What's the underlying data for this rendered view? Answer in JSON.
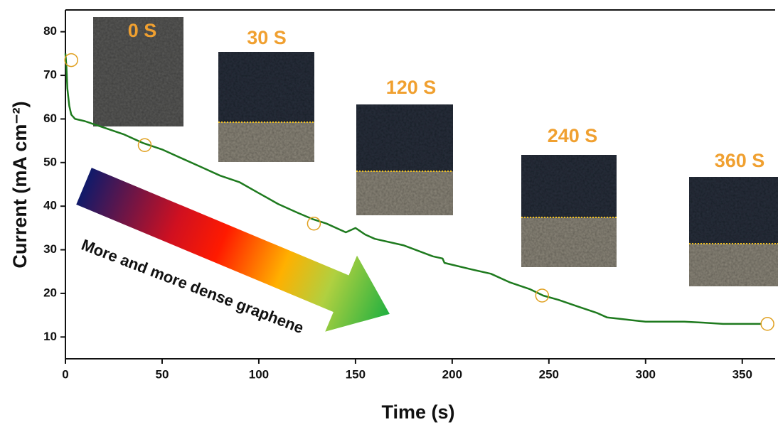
{
  "chart_data": {
    "type": "line",
    "xlabel": "Time (s)",
    "ylabel": "Current (mA cm⁻²)",
    "x": [
      0,
      0.5,
      1,
      2,
      3,
      5,
      10,
      20,
      30,
      40,
      50,
      60,
      70,
      80,
      90,
      100,
      110,
      120,
      128,
      135,
      145,
      150,
      155,
      160,
      175,
      190,
      195,
      196,
      210,
      220,
      230,
      240,
      247,
      255,
      265,
      275,
      280,
      290,
      300,
      310,
      320,
      330,
      340,
      350,
      360
    ],
    "series": [
      {
        "name": "Current",
        "color": "#1e7a1e",
        "values": [
          75,
          72,
          67,
          63,
          61,
          60,
          59.5,
          58,
          56.5,
          54.5,
          53,
          51,
          49,
          47,
          45.5,
          43,
          40.5,
          38.5,
          37,
          36,
          34,
          35,
          33.5,
          32.5,
          31,
          28.5,
          28,
          27,
          25.5,
          24.5,
          22.5,
          21,
          19.5,
          18.5,
          17,
          15.5,
          14.5,
          14,
          13.5,
          13.5,
          13.5,
          13.3,
          13,
          13,
          13
        ]
      }
    ],
    "markers": {
      "x": [
        3,
        41,
        128.5,
        246.5,
        363
      ],
      "y": [
        73.5,
        54,
        36,
        19.5,
        13
      ],
      "color": "#e0a020"
    },
    "insets": [
      "0 S",
      "30 S",
      "120 S",
      "240 S",
      "360 S"
    ],
    "annotation": "More and more dense graphene",
    "xlim": [
      0,
      367
    ],
    "ylim": [
      5,
      85
    ],
    "xticks": [
      0,
      50,
      100,
      150,
      200,
      250,
      300,
      350
    ],
    "yticks": [
      10,
      20,
      30,
      40,
      50,
      60,
      70,
      80
    ]
  }
}
